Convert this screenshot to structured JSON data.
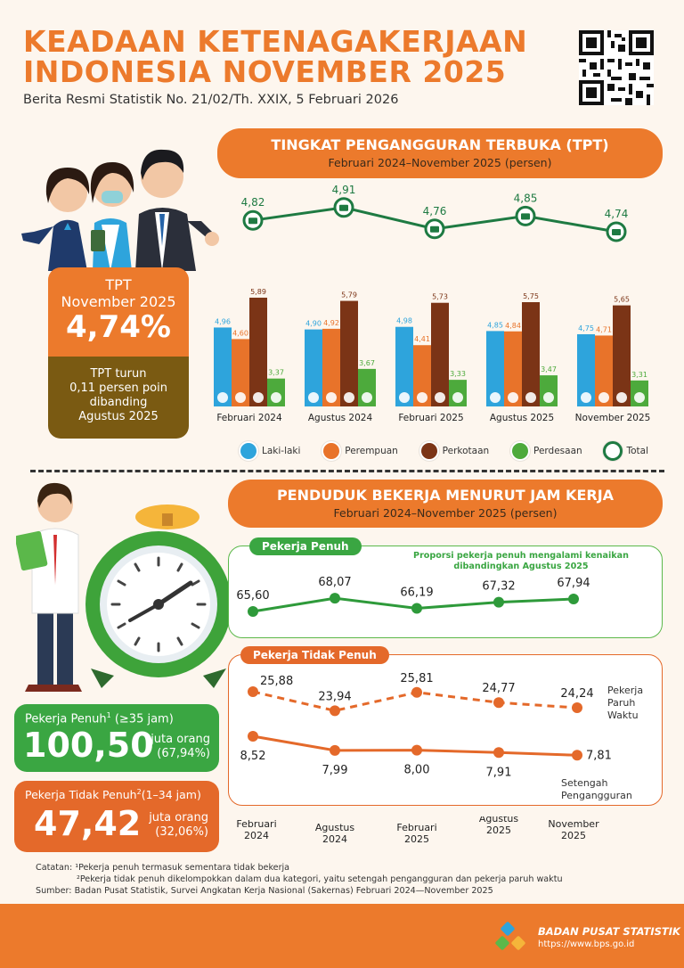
{
  "header": {
    "title_line1": "KEADAAN KETENAGAKERJAAN",
    "title_line2": "INDONESIA NOVEMBER 2025",
    "subtitle": "Berita Resmi Statistik No. 21/02/Th. XXIX, 5 Februari 2026"
  },
  "tpt_card": {
    "label1": "TPT",
    "label2": "November 2025",
    "value": "4,74%",
    "note1": "TPT turun",
    "note2": "0,11 persen poin",
    "note3": "dibanding",
    "note4": "Agustus 2025"
  },
  "tpt_section": {
    "title": "TINGKAT PENGANGGURAN TERBUKA (TPT)",
    "subtitle": "Februari 2024–November 2025 (persen)"
  },
  "work_section": {
    "title": "PENDUDUK BEKERJA MENURUT JAM KERJA",
    "subtitle": "Februari 2024–November 2025 (persen)",
    "full_tag": "Pekerja Penuh",
    "full_note1": "Proporsi pekerja penuh mengalami kenaikan",
    "full_note2": "dibandingkan Agustus 2025",
    "part_tag": "Pekerja Tidak Penuh",
    "part_time_label1": "Pekerja",
    "part_time_label2": "Paruh",
    "part_time_label3": "Waktu",
    "under_label1": "Setengah",
    "under_label2": "Pengangguran"
  },
  "stats": {
    "full_label": "Pekerja Penuh",
    "full_sup": "1",
    "full_range": "(≥35  jam)",
    "full_value": "100,50",
    "full_unit": "juta orang",
    "full_pct": "(67,94%)",
    "part_label": "Pekerja Tidak Penuh",
    "part_sup": "2",
    "part_range": "(1–34 jam)",
    "part_value": "47,42",
    "part_unit": "juta orang",
    "part_pct": "(32,06%)"
  },
  "notes": {
    "line1_label": "Catatan:",
    "line1": "¹Pekerja penuh termasuk sementara tidak bekerja",
    "line2": "²Pekerja tidak penuh dikelompokkan dalam dua kategori, yaitu setengah pengangguran dan pekerja paruh waktu",
    "line3_label": "Sumber",
    "line3": ": Badan Pusat Statistik, Survei Angkatan Kerja Nasional (Sakernas) Februari 2024—November 2025"
  },
  "footer": {
    "org": "BADAN PUSAT STATISTIK",
    "url": "https://www.bps.go.id"
  },
  "colors": {
    "orange": "#ec7a2c",
    "blue": "#2ea4dc",
    "brown": "#7b3416",
    "green": "#4daa3c",
    "dark_green": "#1e7a42",
    "olive": "#7a5a12"
  },
  "chart_data": [
    {
      "type": "bar",
      "title": "TINGKAT PENGANGGURAN TERBUKA (TPT)",
      "categories": [
        "Februari 2024",
        "Agustus 2024",
        "Februari 2025",
        "Agustus 2025",
        "November 2025"
      ],
      "series": [
        {
          "name": "Laki-laki",
          "values": [
            4.96,
            4.9,
            4.98,
            4.85,
            4.75
          ],
          "labels": [
            "4,96",
            "4,90",
            "4,98",
            "4,85",
            "4,75"
          ],
          "color": "#2ea4dc",
          "icon": "male-icon"
        },
        {
          "name": "Perempuan",
          "values": [
            4.6,
            4.92,
            4.41,
            4.84,
            4.71
          ],
          "labels": [
            "4,60",
            "4,92",
            "4,41",
            "4,84",
            "4,71"
          ],
          "color": "#e8732a",
          "icon": "female-icon"
        },
        {
          "name": "Perkotaan",
          "values": [
            5.89,
            5.79,
            5.73,
            5.75,
            5.65
          ],
          "labels": [
            "5,89",
            "5,79",
            "5,73",
            "5,75",
            "5,65"
          ],
          "color": "#7b3416",
          "icon": "city-icon"
        },
        {
          "name": "Perdesaan",
          "values": [
            3.37,
            3.67,
            3.33,
            3.47,
            3.31
          ],
          "labels": [
            "3,37",
            "3,67",
            "3,33",
            "3,47",
            "3,31"
          ],
          "color": "#4daa3c",
          "icon": "village-icon"
        }
      ],
      "total": {
        "name": "Total",
        "values": [
          4.82,
          4.91,
          4.76,
          4.85,
          4.74
        ],
        "labels": [
          "4,82",
          "4,91",
          "4,76",
          "4,85",
          "4,74"
        ],
        "color": "#1e7a42",
        "icon": "briefcase-icon"
      }
    },
    {
      "type": "line",
      "title": "Pekerja Penuh",
      "categories": [
        "Februari 2024",
        "Agustus 2024",
        "Februari 2025",
        "Agustus 2025",
        "November 2025"
      ],
      "series": [
        {
          "name": "Pekerja Penuh",
          "values": [
            65.6,
            68.07,
            66.19,
            67.32,
            67.94
          ],
          "labels": [
            "65,60",
            "68,07",
            "66,19",
            "67,32",
            "67,94"
          ],
          "color": "#2e9a3a"
        }
      ]
    },
    {
      "type": "line",
      "title": "Pekerja Tidak Penuh",
      "categories": [
        "Februari 2024",
        "Agustus 2024",
        "Februari 2025",
        "Agustus 2025",
        "November 2025"
      ],
      "series": [
        {
          "name": "Pekerja Paruh Waktu",
          "values": [
            25.88,
            23.94,
            25.81,
            24.77,
            24.24
          ],
          "labels": [
            "25,88",
            "23,94",
            "25,81",
            "24,77",
            "24,24"
          ],
          "color": "#e4692a",
          "dashed": true
        },
        {
          "name": "Setengah Pengangguran",
          "values": [
            8.52,
            7.99,
            8.0,
            7.91,
            7.81
          ],
          "labels": [
            "8,52",
            "7,99",
            "8,00",
            "7,91",
            "7,81"
          ],
          "color": "#e4692a",
          "dashed": false
        }
      ]
    }
  ],
  "x_axis_lines": [
    [
      "Februari",
      "2024"
    ],
    [
      "Agustus",
      "2024"
    ],
    [
      "Februari",
      "2025"
    ],
    [
      "Agustus",
      "2025"
    ],
    [
      "November",
      "2025"
    ]
  ]
}
